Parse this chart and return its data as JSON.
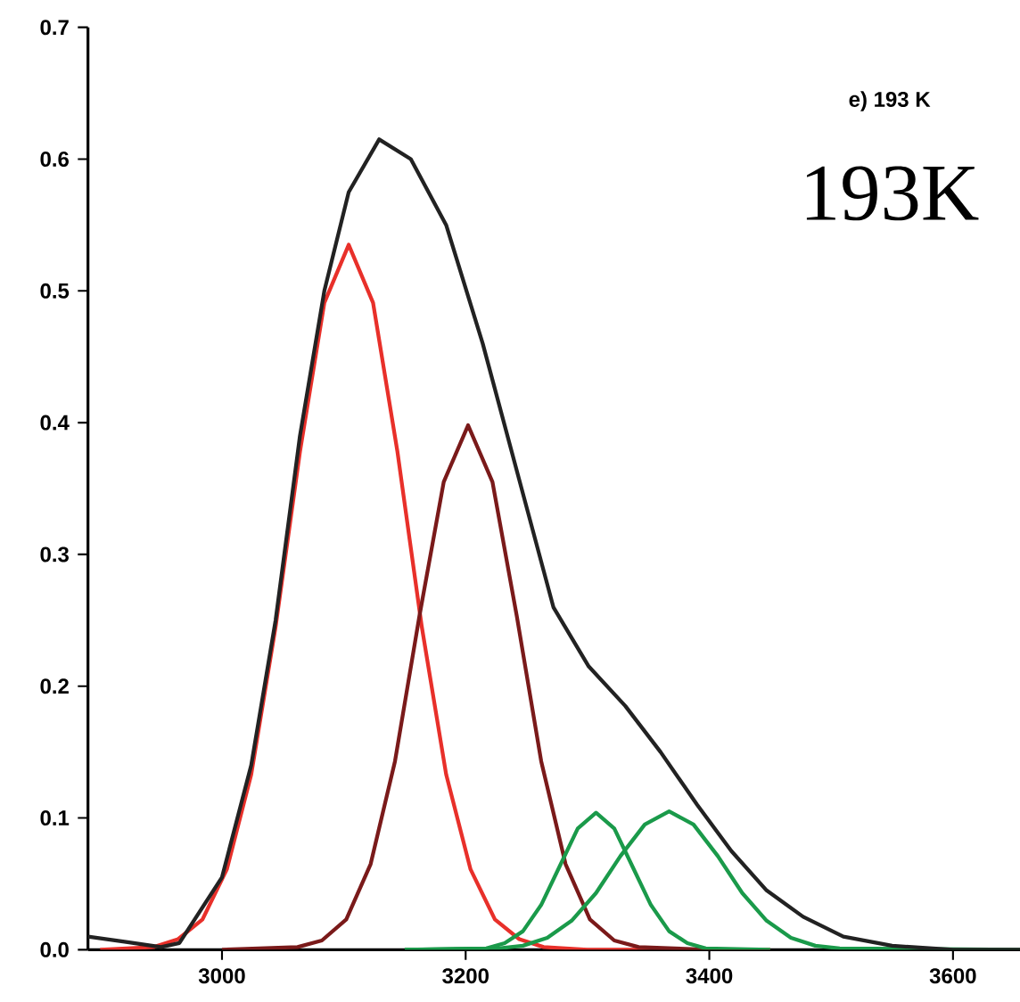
{
  "chart_data": {
    "type": "line",
    "annotations": [
      "e) 193 K",
      "193K"
    ],
    "xlim": [
      2890,
      3655
    ],
    "ylim": [
      0,
      0.7
    ],
    "xticks": [
      3000,
      3200,
      3400,
      3600
    ],
    "yticks": [
      {
        "value": 0,
        "label": "0.0"
      },
      {
        "value": 0.1,
        "label": "0.1"
      },
      {
        "value": 0.2,
        "label": "0.2"
      },
      {
        "value": 0.3,
        "label": "0.3"
      },
      {
        "value": 0.4,
        "label": "0.4"
      },
      {
        "value": 0.5,
        "label": "0.5"
      },
      {
        "value": 0.6,
        "label": "0.6"
      },
      {
        "value": 0.7,
        "label": "0.7"
      }
    ],
    "series": [
      {
        "color": "#e8302a",
        "x": [
          2900,
          2944,
          2964,
          2984,
          3004,
          3024,
          3044,
          3064,
          3084,
          3104,
          3124,
          3144,
          3164,
          3184,
          3204,
          3224,
          3244,
          3264,
          3300,
          3450
        ],
        "values": [
          0,
          0.002,
          0.008,
          0.023,
          0.061,
          0.133,
          0.245,
          0.378,
          0.491,
          0.535,
          0.491,
          0.378,
          0.245,
          0.133,
          0.061,
          0.023,
          0.008,
          0.002,
          0,
          0
        ]
      },
      {
        "color": "#7a1a1a",
        "x": [
          3000,
          3062,
          3082,
          3102,
          3122,
          3142,
          3162,
          3182,
          3202,
          3222,
          3242,
          3262,
          3282,
          3302,
          3322,
          3342,
          3400
        ],
        "values": [
          0,
          0.002,
          0.007,
          0.023,
          0.065,
          0.143,
          0.253,
          0.355,
          0.398,
          0.355,
          0.253,
          0.143,
          0.065,
          0.023,
          0.007,
          0.002,
          0
        ]
      },
      {
        "color": "#1a9a4a",
        "x": [
          3150,
          3217,
          3232,
          3247,
          3262,
          3277,
          3292,
          3307,
          3322,
          3337,
          3352,
          3367,
          3382,
          3397,
          3450
        ],
        "values": [
          0,
          0.001,
          0.005,
          0.014,
          0.034,
          0.063,
          0.092,
          0.104,
          0.092,
          0.063,
          0.034,
          0.014,
          0.005,
          0.001,
          0
        ]
      },
      {
        "color": "#1a9a4a",
        "x": [
          3150,
          3227,
          3247,
          3267,
          3287,
          3307,
          3327,
          3347,
          3367,
          3387,
          3407,
          3427,
          3447,
          3467,
          3487,
          3507,
          3655
        ],
        "values": [
          0,
          0.001,
          0.003,
          0.009,
          0.022,
          0.043,
          0.071,
          0.095,
          0.105,
          0.095,
          0.071,
          0.043,
          0.022,
          0.009,
          0.003,
          0.001,
          0
        ]
      },
      {
        "color": "#222222",
        "x": [
          2890,
          2920,
          2950,
          2965,
          3000,
          3024,
          3044,
          3064,
          3084,
          3104,
          3129,
          3155,
          3184,
          3214,
          3243,
          3272,
          3301,
          3331,
          3360,
          3390,
          3418,
          3447,
          3477,
          3510,
          3550,
          3600,
          3655
        ],
        "values": [
          0.01,
          0.006,
          0.002,
          0.005,
          0.055,
          0.14,
          0.25,
          0.39,
          0.5,
          0.575,
          0.615,
          0.6,
          0.55,
          0.46,
          0.36,
          0.26,
          0.215,
          0.185,
          0.15,
          0.11,
          0.075,
          0.045,
          0.025,
          0.01,
          0.003,
          0,
          0
        ]
      }
    ]
  }
}
